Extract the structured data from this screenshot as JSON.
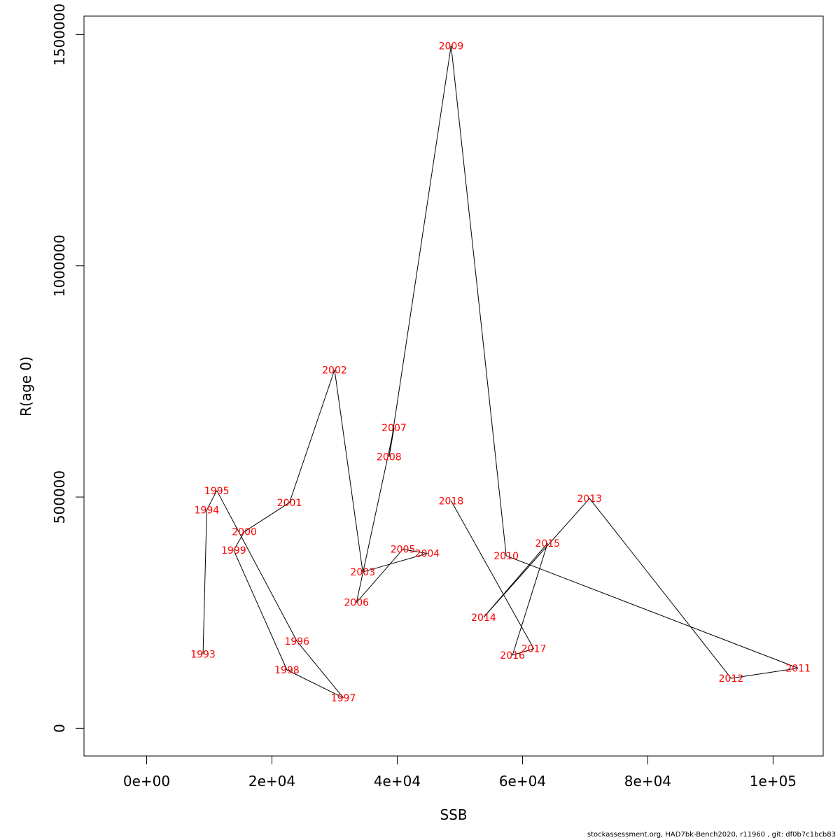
{
  "chart_data": {
    "type": "line",
    "xlabel": "SSB",
    "ylabel": "R(age 0)",
    "xlim": [
      -10000,
      108000
    ],
    "ylim": [
      -60000,
      1540000
    ],
    "x_ticks": [
      0,
      20000,
      40000,
      60000,
      80000,
      100000
    ],
    "x_tick_labels": [
      "0e+00",
      "2e+04",
      "4e+04",
      "6e+04",
      "8e+04",
      "1e+05"
    ],
    "y_ticks": [
      0,
      500000,
      1000000,
      1500000
    ],
    "y_tick_labels": [
      "0",
      "500000",
      "1000000",
      "1500000"
    ],
    "grid": false,
    "line_color": "#000000",
    "label_color": "#ff0000",
    "points": [
      {
        "label": "1993",
        "x": 9000,
        "y": 160000
      },
      {
        "label": "1994",
        "x": 9600,
        "y": 472000
      },
      {
        "label": "1995",
        "x": 11200,
        "y": 514000
      },
      {
        "label": "1996",
        "x": 24000,
        "y": 188000
      },
      {
        "label": "1997",
        "x": 31400,
        "y": 66000
      },
      {
        "label": "1998",
        "x": 22400,
        "y": 126000
      },
      {
        "label": "1999",
        "x": 13900,
        "y": 385000
      },
      {
        "label": "2000",
        "x": 15600,
        "y": 425000
      },
      {
        "label": "2001",
        "x": 22800,
        "y": 488000
      },
      {
        "label": "2002",
        "x": 30000,
        "y": 775000
      },
      {
        "label": "2003",
        "x": 34500,
        "y": 338000
      },
      {
        "label": "2004",
        "x": 44800,
        "y": 378000
      },
      {
        "label": "2005",
        "x": 40900,
        "y": 387000
      },
      {
        "label": "2006",
        "x": 33500,
        "y": 272000
      },
      {
        "label": "2007",
        "x": 39500,
        "y": 650000
      },
      {
        "label": "2008",
        "x": 38700,
        "y": 587000
      },
      {
        "label": "2009",
        "x": 48600,
        "y": 1476000
      },
      {
        "label": "2010",
        "x": 57400,
        "y": 373000
      },
      {
        "label": "2011",
        "x": 104000,
        "y": 130000
      },
      {
        "label": "2012",
        "x": 93300,
        "y": 108000
      },
      {
        "label": "2013",
        "x": 70700,
        "y": 497000
      },
      {
        "label": "2014",
        "x": 53800,
        "y": 240000
      },
      {
        "label": "2015",
        "x": 64000,
        "y": 400000
      },
      {
        "label": "2016",
        "x": 58400,
        "y": 158000
      },
      {
        "label": "2017",
        "x": 61800,
        "y": 172000
      },
      {
        "label": "2018",
        "x": 48600,
        "y": 492000
      }
    ]
  },
  "footer": "stockassessment.org, HAD7bk-Bench2020, r11960 , git: df0b7c1bcb83"
}
